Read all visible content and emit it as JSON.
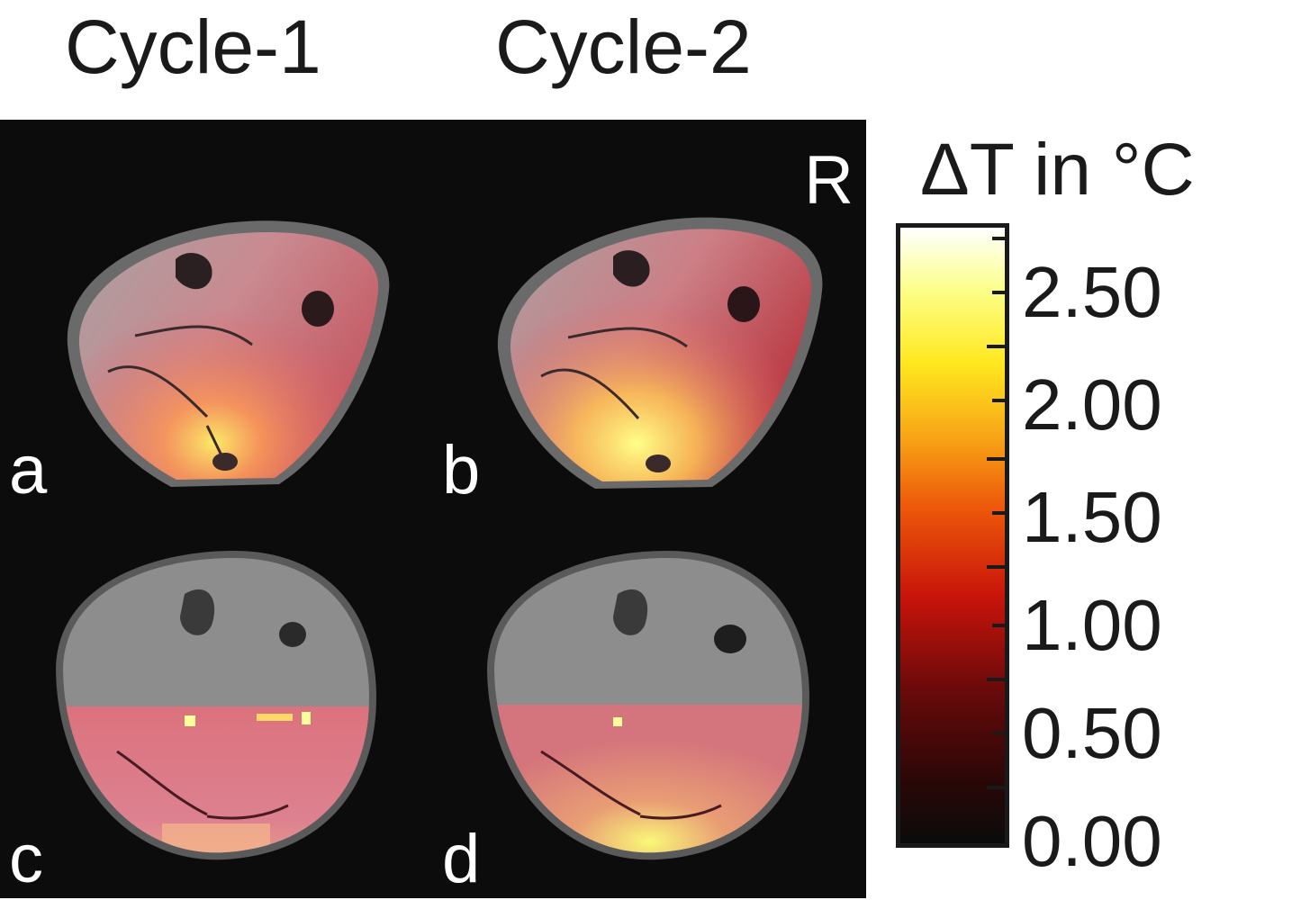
{
  "columns": {
    "cycle1": "Cycle-1",
    "cycle2": "Cycle-2"
  },
  "panels": {
    "a": "a",
    "b": "b",
    "c": "c",
    "d": "d"
  },
  "orientation_marker": "R",
  "colorbar": {
    "title": "ΔT in °C",
    "labels": [
      "2.50",
      "2.00",
      "1.50",
      "1.00",
      "0.50",
      "0.00"
    ],
    "colormap": [
      "#0b0b0b",
      "#6a0a0a",
      "#c8140a",
      "#ee5a0a",
      "#f7a516",
      "#ffe81f",
      "#ffffff"
    ]
  }
}
